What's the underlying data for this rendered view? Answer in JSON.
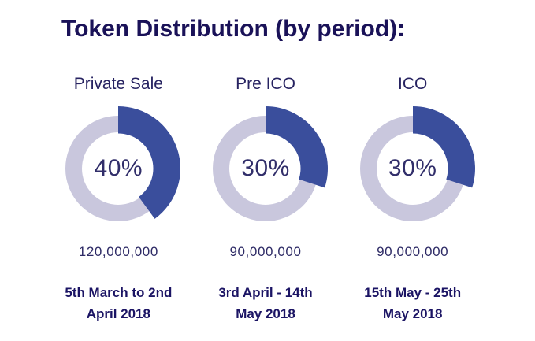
{
  "title": "Token Distribution (by period):",
  "chart_data": {
    "type": "donut",
    "title": "Token Distribution (by period):",
    "legend_position": "none",
    "start_angle_deg": 0,
    "direction": "clockwise",
    "colors": {
      "segment": "#3A4E9C",
      "track": "#C9C7DD",
      "heading_text": "#1A1258",
      "value_text": "#2E2B66"
    },
    "series": [
      {
        "label": "Private Sale",
        "percent": 40,
        "percent_label": "40%",
        "amount": "120,000,000",
        "period_lines": [
          "5th March to 2nd",
          "April 2018"
        ]
      },
      {
        "label": "Pre ICO",
        "percent": 30,
        "percent_label": "30%",
        "amount": "90,000,000",
        "period_lines": [
          "3rd April - 14th",
          "May 2018"
        ]
      },
      {
        "label": "ICO",
        "percent": 30,
        "percent_label": "30%",
        "amount": "90,000,000",
        "period_lines": [
          "15th May - 25th",
          "May 2018"
        ]
      }
    ]
  }
}
